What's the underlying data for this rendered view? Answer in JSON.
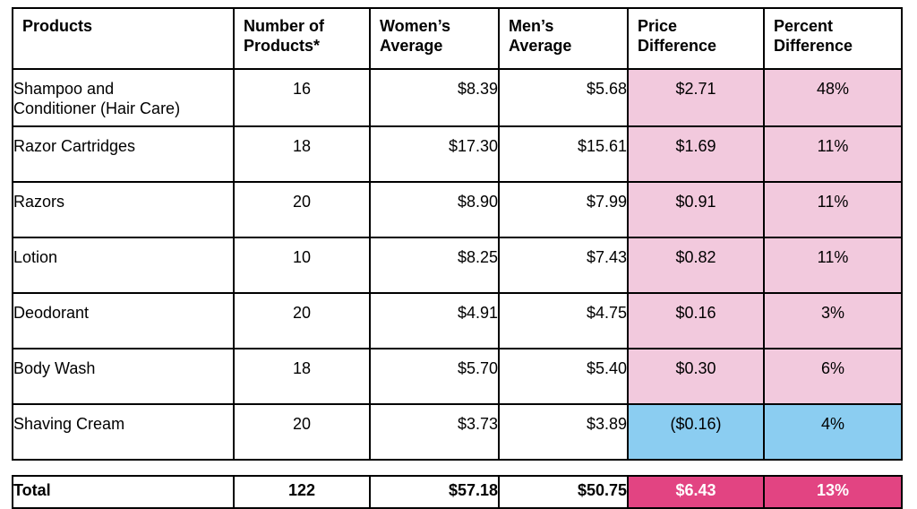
{
  "headers": [
    "Products",
    "Number of Products*",
    "Women’s Average",
    "Men’s Average",
    "Price Difference",
    "Percent Difference"
  ],
  "header_lines": [
    [
      "Products",
      ""
    ],
    [
      "Number of",
      "Products*"
    ],
    [
      "Women’s",
      "Average"
    ],
    [
      "Men’s",
      "Average"
    ],
    [
      "Price",
      "Difference"
    ],
    [
      "Percent",
      "Difference"
    ]
  ],
  "rows": [
    {
      "product_lines": [
        "Shampoo and",
        "Conditioner (Hair Care)"
      ],
      "count": "16",
      "women": "$8.39",
      "men": "$5.68",
      "price_diff": "$2.71",
      "percent_diff": "48%",
      "highlight": "pink"
    },
    {
      "product_lines": [
        "Razor Cartridges",
        ""
      ],
      "count": "18",
      "women": "$17.30",
      "men": "$15.61",
      "price_diff": "$1.69",
      "percent_diff": "11%",
      "highlight": "pink"
    },
    {
      "product_lines": [
        "Razors",
        ""
      ],
      "count": "20",
      "women": "$8.90",
      "men": "$7.99",
      "price_diff": "$0.91",
      "percent_diff": "11%",
      "highlight": "pink"
    },
    {
      "product_lines": [
        "Lotion",
        ""
      ],
      "count": "10",
      "women": "$8.25",
      "men": "$7.43",
      "price_diff": "$0.82",
      "percent_diff": "11%",
      "highlight": "pink"
    },
    {
      "product_lines": [
        "Deodorant",
        ""
      ],
      "count": "20",
      "women": "$4.91",
      "men": "$4.75",
      "price_diff": "$0.16",
      "percent_diff": "3%",
      "highlight": "pink"
    },
    {
      "product_lines": [
        "Body Wash",
        ""
      ],
      "count": "18",
      "women": "$5.70",
      "men": "$5.40",
      "price_diff": "$0.30",
      "percent_diff": "6%",
      "highlight": "pink"
    },
    {
      "product_lines": [
        "Shaving Cream",
        ""
      ],
      "count": "20",
      "women": "$3.73",
      "men": "$3.89",
      "price_diff": "($0.16)",
      "percent_diff": "4%",
      "highlight": "blue"
    }
  ],
  "total": {
    "label": "Total",
    "count": "122",
    "women": "$57.18",
    "men": "$50.75",
    "price_diff": "$6.43",
    "percent_diff": "13%"
  },
  "colors": {
    "pink": "#f2c9dd",
    "blue": "#8bcdf1",
    "total_highlight": "#e24482"
  }
}
